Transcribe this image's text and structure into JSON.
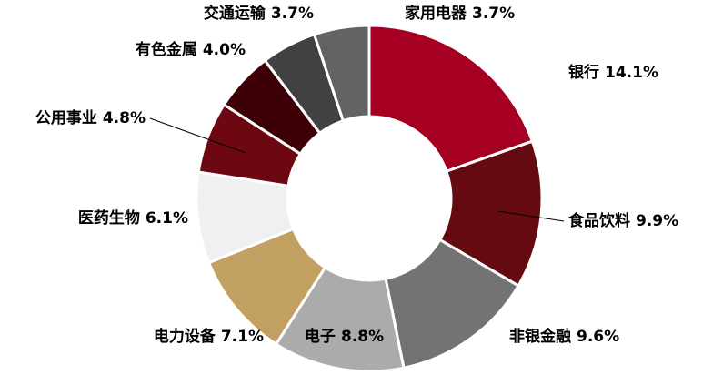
{
  "chart_data": {
    "type": "donut",
    "categories": [
      "银行",
      "食品饮料",
      "非银金融",
      "电子",
      "电力设备",
      "医药生物",
      "公用事业",
      "有色金属",
      "交通运输",
      "家用电器"
    ],
    "values": [
      14.1,
      9.9,
      9.6,
      8.8,
      7.1,
      6.1,
      4.8,
      4.0,
      3.7,
      3.7
    ],
    "value_labels": [
      "14.1%",
      "9.9%",
      "9.6%",
      "8.8%",
      "7.1%",
      "6.1%",
      "4.8%",
      "4.0%",
      "3.7%",
      "3.7%"
    ],
    "colors": [
      "#a50021",
      "#650a10",
      "#737373",
      "#ababab",
      "#c1a062",
      "#f0f0f0",
      "#6d0813",
      "#3d0007",
      "#414141",
      "#636363"
    ]
  }
}
